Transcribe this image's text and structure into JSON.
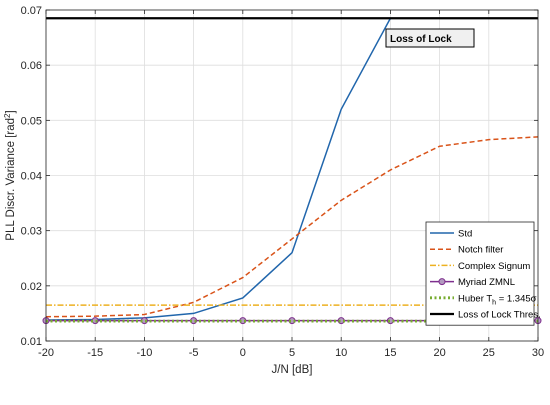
{
  "chart_data": {
    "type": "line",
    "xlabel": "J/N [dB]",
    "ylabel": "PLL Discr. Variance [rad",
    "ylabel_sup": "2",
    "ylabel_end": "]",
    "xlim": [
      -20,
      30
    ],
    "ylim": [
      0.01,
      0.07
    ],
    "xticks": [
      -20,
      -15,
      -10,
      -5,
      0,
      5,
      10,
      15,
      20,
      25,
      30
    ],
    "yticks": [
      0.01,
      0.02,
      0.03,
      0.04,
      0.05,
      0.06,
      0.07
    ],
    "grid": true,
    "legend_position": "lower-right",
    "annotation": "Loss of Lock",
    "series": [
      {
        "name": "Std",
        "color": "#2166ac",
        "style": "solid",
        "x": [
          -20,
          -15,
          -10,
          -5,
          0,
          5,
          10,
          15
        ],
        "y": [
          0.0138,
          0.0139,
          0.0142,
          0.015,
          0.0178,
          0.026,
          0.052,
          0.0685
        ]
      },
      {
        "name": "Notch filter",
        "color": "#d95319",
        "style": "dashed",
        "x": [
          -20,
          -15,
          -10,
          -5,
          0,
          5,
          10,
          15,
          20,
          25,
          30
        ],
        "y": [
          0.0144,
          0.0145,
          0.0148,
          0.017,
          0.0215,
          0.0285,
          0.0355,
          0.041,
          0.0453,
          0.0465,
          0.047
        ]
      },
      {
        "name": "Complex Signum",
        "color": "#edb120",
        "style": "dashdot",
        "x": [
          -20,
          30
        ],
        "y": [
          0.0165,
          0.0165
        ]
      },
      {
        "name": "Myriad ZMNL",
        "color": "#7e2f8e",
        "style": "solid-marker",
        "x": [
          -20,
          -15,
          -10,
          -5,
          0,
          5,
          10,
          15,
          20,
          25,
          30
        ],
        "y": [
          0.0137,
          0.0137,
          0.0137,
          0.0137,
          0.0137,
          0.0137,
          0.0137,
          0.0137,
          0.0137,
          0.0137,
          0.0137
        ]
      },
      {
        "name": "Huber T",
        "name_sub": "h",
        "name_end": " = 1.345σ",
        "color": "#77ac30",
        "style": "dotted",
        "x": [
          -20,
          30
        ],
        "y": [
          0.0136,
          0.0136
        ]
      },
      {
        "name": "Loss of Lock Thres.",
        "color": "#000000",
        "style": "solid-thick",
        "x": [
          -20,
          30
        ],
        "y": [
          0.0685,
          0.0685
        ]
      }
    ]
  }
}
